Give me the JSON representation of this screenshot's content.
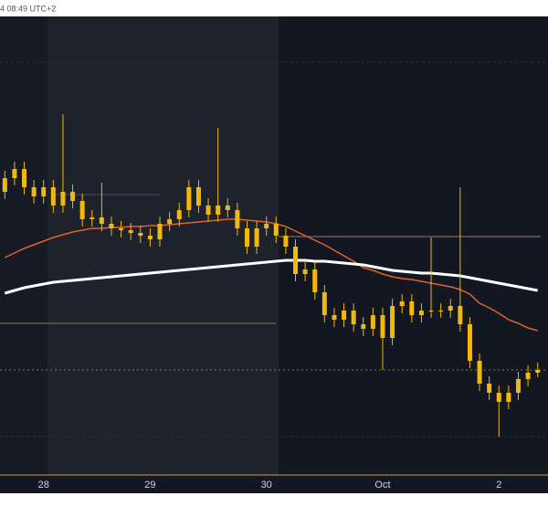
{
  "chart_data": {
    "type": "candlestick",
    "subtitle": "4 08:49 UTC+2",
    "categories": [
      null,
      null,
      null,
      null,
      "28",
      null,
      null,
      null,
      null,
      null,
      null,
      null,
      null,
      null,
      null,
      "29",
      null,
      null,
      null,
      null,
      null,
      null,
      null,
      null,
      null,
      null,
      null,
      "30",
      null,
      null,
      null,
      null,
      null,
      null,
      null,
      null,
      null,
      null,
      null,
      "Oct",
      null,
      null,
      null,
      null,
      null,
      null,
      null,
      null,
      null,
      null,
      null,
      "2",
      null,
      null,
      null,
      null
    ],
    "open": [
      310,
      325,
      335,
      315,
      305,
      315,
      295,
      310,
      300,
      280,
      282,
      275,
      270,
      268,
      265,
      262,
      258,
      275,
      280,
      290,
      315,
      295,
      285,
      295,
      290,
      270,
      250,
      270,
      275,
      262,
      250,
      220,
      225,
      200,
      175,
      170,
      180,
      165,
      160,
      175,
      150,
      185,
      190,
      175,
      180,
      180,
      180,
      185,
      165,
      125,
      100,
      90,
      80,
      90,
      105,
      112
    ],
    "high": [
      333,
      343,
      343,
      323,
      323,
      323,
      395,
      318,
      308,
      290,
      320,
      283,
      278,
      276,
      273,
      270,
      283,
      288,
      298,
      323,
      323,
      303,
      380,
      303,
      298,
      278,
      278,
      283,
      283,
      270,
      258,
      233,
      233,
      208,
      183,
      188,
      188,
      173,
      183,
      183,
      193,
      198,
      198,
      188,
      260,
      188,
      193,
      315,
      173,
      133,
      108,
      98,
      98,
      113,
      120,
      123
    ],
    "low": [
      302,
      317,
      307,
      297,
      297,
      287,
      287,
      292,
      272,
      272,
      267,
      262,
      260,
      257,
      254,
      250,
      250,
      267,
      272,
      282,
      287,
      277,
      277,
      282,
      262,
      242,
      242,
      262,
      254,
      242,
      212,
      212,
      192,
      167,
      162,
      162,
      157,
      152,
      152,
      115,
      142,
      177,
      167,
      167,
      172,
      172,
      172,
      157,
      117,
      92,
      82,
      42,
      72,
      82,
      97,
      107
    ],
    "close": [
      325,
      335,
      315,
      305,
      315,
      295,
      310,
      300,
      280,
      282,
      275,
      270,
      268,
      265,
      262,
      258,
      275,
      280,
      290,
      315,
      295,
      285,
      295,
      290,
      270,
      250,
      270,
      275,
      262,
      250,
      220,
      225,
      200,
      175,
      170,
      180,
      165,
      160,
      175,
      150,
      185,
      190,
      175,
      180,
      180,
      180,
      185,
      165,
      125,
      100,
      90,
      80,
      90,
      105,
      112,
      115
    ],
    "color": "#f0b90b",
    "series": [
      {
        "color": "#e0622a",
        "values": [
          238,
          243,
          248,
          252,
          256,
          260,
          263,
          266,
          268,
          270,
          270,
          271,
          271,
          272,
          272,
          273,
          273,
          274,
          275,
          276,
          277,
          278,
          279,
          280,
          280,
          279,
          278,
          277,
          275,
          272,
          267,
          262,
          257,
          252,
          246,
          240,
          234,
          227,
          224,
          220,
          217,
          215,
          214,
          212,
          210,
          208,
          206,
          203,
          198,
          188,
          183,
          177,
          170,
          166,
          161,
          158
        ]
      },
      {
        "color": "#ffffff",
        "values": [
          199,
          202,
          205,
          207,
          209,
          211,
          212,
          213,
          214,
          215,
          216,
          217,
          218,
          219,
          220,
          221,
          222,
          223,
          224,
          225,
          226,
          227,
          228,
          229,
          230,
          231,
          232,
          233,
          234,
          235,
          235,
          235,
          234,
          234,
          233,
          232,
          231,
          230,
          228,
          226,
          224,
          223,
          222,
          221,
          221,
          220,
          219,
          218,
          216,
          214,
          212,
          210,
          208,
          206,
          204,
          202
        ]
      }
    ],
    "ylim": [
      0,
      502
    ]
  }
}
